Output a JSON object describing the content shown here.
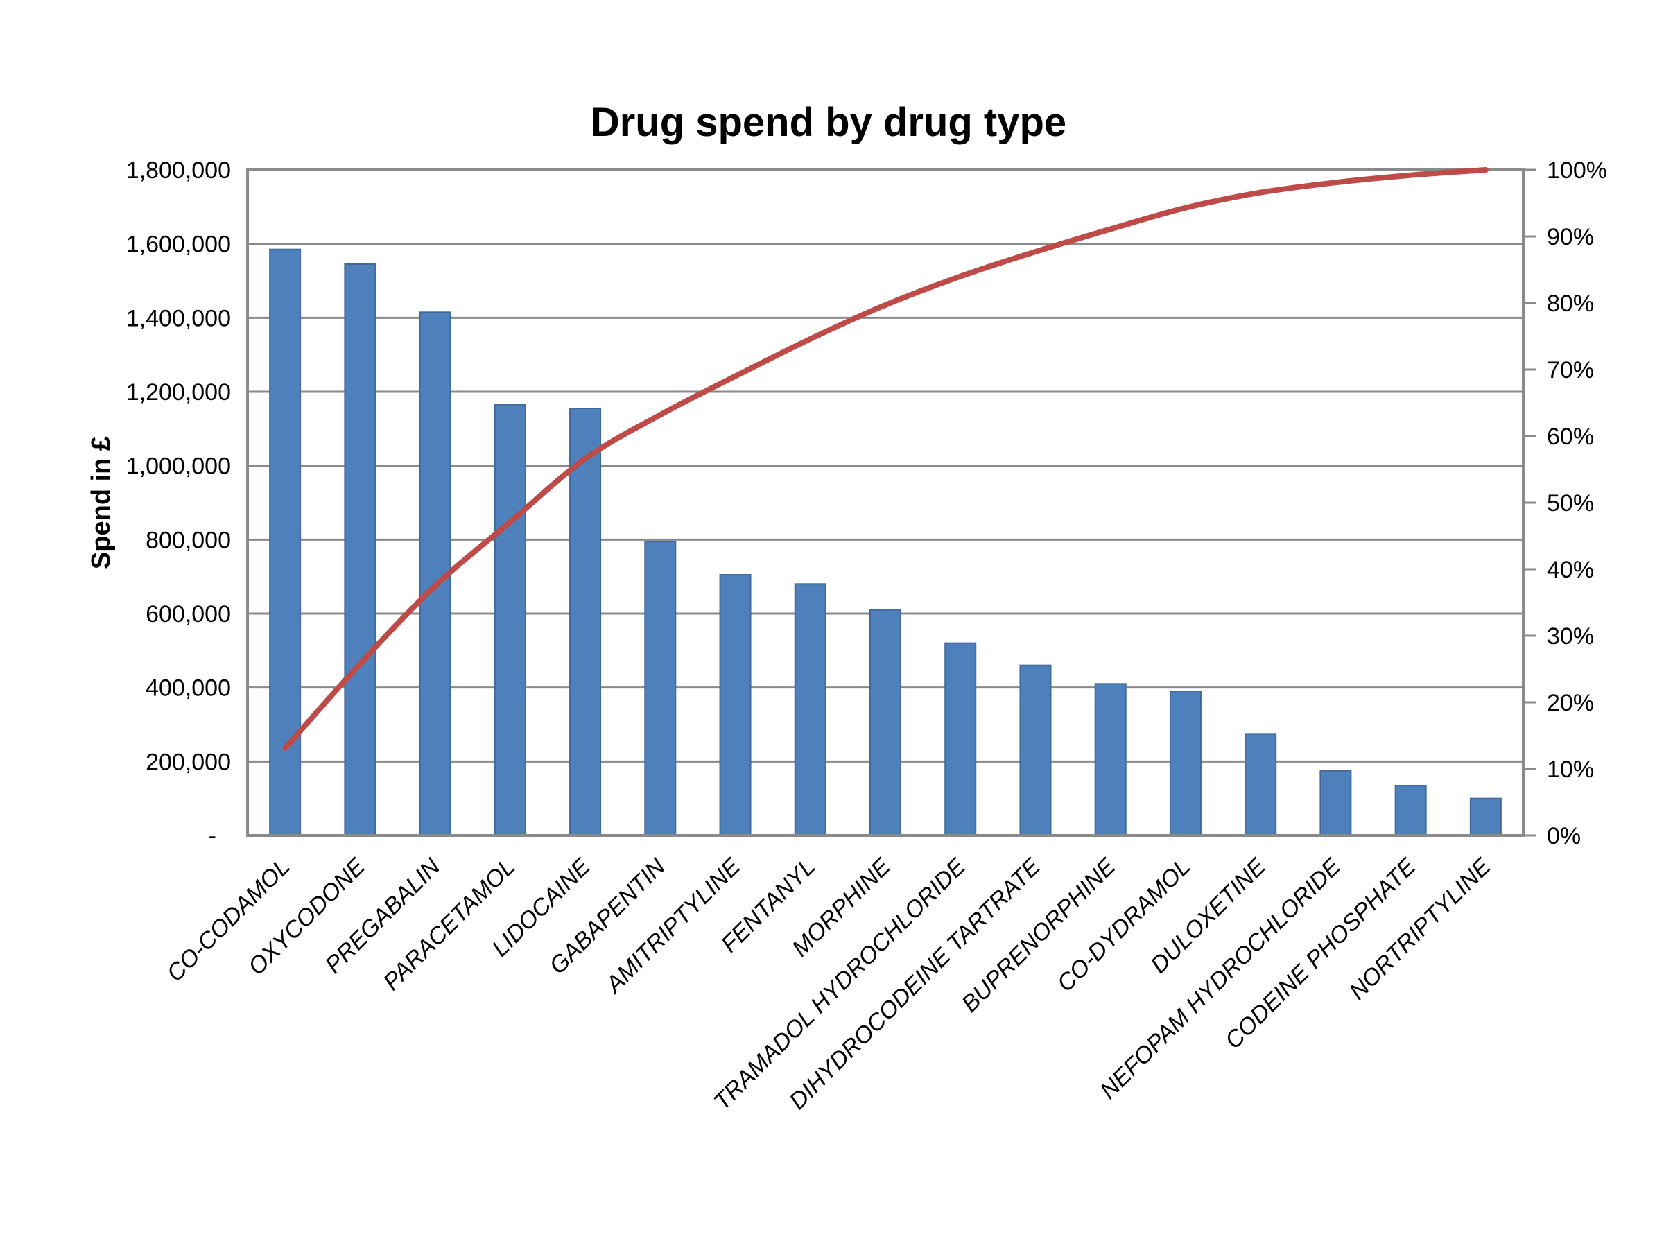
{
  "page": {
    "background": "#FFFFFF"
  },
  "chart_data": {
    "type": "bar",
    "subtype": "pareto-combo",
    "title": "Drug spend by drug type",
    "ylabel": "Spend in £",
    "xlabel": "",
    "grid": true,
    "legend_position": "none",
    "categories": [
      "CO-CODAMOL",
      "OXYCODONE",
      "PREGABALIN",
      "PARACETAMOL",
      "LIDOCAINE",
      "GABAPENTIN",
      "AMITRIPTYLINE",
      "FENTANYL",
      "MORPHINE",
      "TRAMADOL HYDROCHLORIDE",
      "DIHYDROCODEINE TARTRATE",
      "BUPRENORPHINE",
      "CO-DYDRAMOL",
      "DULOXETINE",
      "NEFOPAM HYDROCHLORIDE",
      "CODEINE PHOSPHATE",
      "NORTRIPTYLINE"
    ],
    "series": [
      {
        "name": "spend_bars",
        "render": "bar",
        "axis": "left",
        "color": "#4E81BC",
        "border_color": "#41699C",
        "values": [
          1585000,
          1545000,
          1415000,
          1165000,
          1155000,
          795000,
          705000,
          680000,
          610000,
          520000,
          460000,
          410000,
          390000,
          275000,
          175000,
          135000,
          100000
        ]
      },
      {
        "name": "cumulative_line",
        "render": "line",
        "axis": "right",
        "color": "#BE4B48",
        "smooth": true,
        "values_pct": [
          13.1,
          25.8,
          37.5,
          47.1,
          56.6,
          63.2,
          69.0,
          74.6,
          79.7,
          84.0,
          87.7,
          91.1,
          94.3,
          96.6,
          98.1,
          99.2,
          100.0
        ]
      }
    ],
    "axes": {
      "left": {
        "min": 0,
        "max": 1800000,
        "step": 200000,
        "tick_labels": [
          "-",
          "200,000",
          "400,000",
          "600,000",
          "800,000",
          "1,000,000",
          "1,200,000",
          "1,400,000",
          "1,600,000",
          "1,800,000"
        ]
      },
      "right": {
        "min": 0,
        "max": 100,
        "step": 10,
        "tick_labels": [
          "0%",
          "10%",
          "20%",
          "30%",
          "40%",
          "50%",
          "60%",
          "70%",
          "80%",
          "90%",
          "100%"
        ]
      }
    },
    "colors": {
      "grid": "#8A8A8A",
      "axis_border": "#8A8A8A",
      "text": "#000000",
      "background": "#FFFFFF"
    }
  }
}
